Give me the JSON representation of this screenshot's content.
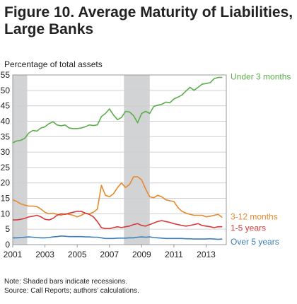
{
  "title_line1": "Figure 10. Average Maturity of Liabilities,",
  "title_line2": "Large Banks",
  "notes": {
    "note": "Note: Shaded bars indicate recessions.",
    "source": "Source: Call Reports; authors’ calculations."
  },
  "chart_data": {
    "type": "line",
    "ylabel": "Percentage of total assets",
    "xlim": [
      2001.0,
      2014.25
    ],
    "ylim": [
      0,
      55
    ],
    "y_ticks": [
      0,
      5,
      10,
      15,
      20,
      25,
      30,
      35,
      40,
      45,
      50,
      55
    ],
    "x_ticks": [
      2001,
      2003,
      2005,
      2007,
      2009,
      2011,
      2013
    ],
    "x_tick_labels": [
      "2001",
      "2003",
      "2005",
      "2007",
      "2009",
      "2011",
      "2013"
    ],
    "recessions": [
      [
        2001.0,
        2001.9
      ],
      [
        2007.9,
        2009.5
      ]
    ],
    "grid": true,
    "series": [
      {
        "name": "Under 3 months",
        "color": "#5cae4a",
        "x": [
          2001.0,
          2001.25,
          2001.5,
          2001.75,
          2002.0,
          2002.25,
          2002.5,
          2002.75,
          2003.0,
          2003.25,
          2003.5,
          2003.75,
          2004.0,
          2004.25,
          2004.5,
          2004.75,
          2005.0,
          2005.25,
          2005.5,
          2005.75,
          2006.0,
          2006.25,
          2006.5,
          2006.75,
          2007.0,
          2007.25,
          2007.5,
          2007.75,
          2008.0,
          2008.25,
          2008.5,
          2008.75,
          2009.0,
          2009.25,
          2009.5,
          2009.75,
          2010.0,
          2010.25,
          2010.5,
          2010.75,
          2011.0,
          2011.25,
          2011.5,
          2011.75,
          2012.0,
          2012.25,
          2012.5,
          2012.75,
          2013.0,
          2013.25,
          2013.5,
          2013.75,
          2014.0
        ],
        "y": [
          33.0,
          33.6,
          33.8,
          34.5,
          36.2,
          37.0,
          36.8,
          37.8,
          38.2,
          39.2,
          39.8,
          38.8,
          38.5,
          38.8,
          37.8,
          37.6,
          37.6,
          37.8,
          38.2,
          38.8,
          38.6,
          38.8,
          41.5,
          42.5,
          44.0,
          42.0,
          40.5,
          41.2,
          43.2,
          43.0,
          41.8,
          39.5,
          42.5,
          43.2,
          42.5,
          44.8,
          45.2,
          45.5,
          46.2,
          46.0,
          47.2,
          47.8,
          48.5,
          49.8,
          51.0,
          50.0,
          51.0,
          52.0,
          52.2,
          52.5,
          53.8,
          54.2,
          54.2
        ]
      },
      {
        "name": "3-12 months",
        "color": "#e8892e",
        "x": [
          2001.0,
          2001.25,
          2001.5,
          2001.75,
          2002.0,
          2002.25,
          2002.5,
          2002.75,
          2003.0,
          2003.25,
          2003.5,
          2003.75,
          2004.0,
          2004.25,
          2004.5,
          2004.75,
          2005.0,
          2005.25,
          2005.5,
          2005.75,
          2006.0,
          2006.25,
          2006.5,
          2006.75,
          2007.0,
          2007.25,
          2007.5,
          2007.75,
          2008.0,
          2008.25,
          2008.5,
          2008.75,
          2009.0,
          2009.25,
          2009.5,
          2009.75,
          2010.0,
          2010.25,
          2010.5,
          2010.75,
          2011.0,
          2011.25,
          2011.5,
          2011.75,
          2012.0,
          2012.25,
          2012.5,
          2012.75,
          2013.0,
          2013.25,
          2013.5,
          2013.75,
          2014.0
        ],
        "y": [
          14.5,
          14.0,
          13.2,
          12.8,
          12.5,
          12.5,
          12.3,
          11.5,
          10.5,
          10.0,
          10.2,
          9.8,
          9.5,
          10.0,
          9.8,
          9.5,
          9.0,
          9.5,
          10.2,
          10.0,
          10.5,
          11.5,
          19.2,
          16.0,
          15.5,
          16.5,
          18.5,
          20.0,
          18.5,
          19.5,
          22.0,
          22.0,
          21.0,
          18.0,
          15.5,
          15.2,
          16.0,
          15.5,
          14.5,
          14.2,
          14.0,
          12.0,
          10.8,
          10.2,
          9.8,
          9.5,
          9.5,
          9.5,
          9.0,
          9.2,
          9.5,
          9.8,
          8.8
        ]
      },
      {
        "name": "1-5 years",
        "color": "#d73b3b",
        "x": [
          2001.0,
          2001.25,
          2001.5,
          2001.75,
          2002.0,
          2002.25,
          2002.5,
          2002.75,
          2003.0,
          2003.25,
          2003.5,
          2003.75,
          2004.0,
          2004.25,
          2004.5,
          2004.75,
          2005.0,
          2005.25,
          2005.5,
          2005.75,
          2006.0,
          2006.25,
          2006.5,
          2006.75,
          2007.0,
          2007.25,
          2007.5,
          2007.75,
          2008.0,
          2008.25,
          2008.5,
          2008.75,
          2009.0,
          2009.25,
          2009.5,
          2009.75,
          2010.0,
          2010.25,
          2010.5,
          2010.75,
          2011.0,
          2011.25,
          2011.5,
          2011.75,
          2012.0,
          2012.25,
          2012.5,
          2012.75,
          2013.0,
          2013.25,
          2013.5,
          2013.75,
          2014.0
        ],
        "y": [
          8.0,
          8.0,
          8.2,
          8.5,
          9.0,
          9.2,
          9.5,
          9.0,
          8.2,
          8.0,
          8.5,
          9.5,
          10.0,
          9.8,
          10.2,
          10.5,
          10.8,
          10.8,
          10.2,
          9.8,
          9.0,
          7.5,
          5.5,
          5.2,
          5.2,
          5.5,
          5.8,
          5.5,
          5.8,
          6.0,
          6.5,
          6.8,
          6.2,
          6.0,
          6.5,
          7.0,
          7.5,
          7.8,
          7.5,
          7.2,
          6.8,
          6.5,
          6.2,
          6.0,
          6.2,
          6.5,
          6.8,
          6.2,
          6.0,
          5.8,
          5.5,
          5.8,
          5.8
        ]
      },
      {
        "name": "Over 5 years",
        "color": "#3d7fb8",
        "x": [
          2001.0,
          2001.25,
          2001.5,
          2001.75,
          2002.0,
          2002.25,
          2002.5,
          2002.75,
          2003.0,
          2003.25,
          2003.5,
          2003.75,
          2004.0,
          2004.25,
          2004.5,
          2004.75,
          2005.0,
          2005.25,
          2005.5,
          2005.75,
          2006.0,
          2006.25,
          2006.5,
          2006.75,
          2007.0,
          2007.25,
          2007.5,
          2007.75,
          2008.0,
          2008.25,
          2008.5,
          2008.75,
          2009.0,
          2009.25,
          2009.5,
          2009.75,
          2010.0,
          2010.25,
          2010.5,
          2010.75,
          2011.0,
          2011.25,
          2011.5,
          2011.75,
          2012.0,
          2012.25,
          2012.5,
          2012.75,
          2013.0,
          2013.25,
          2013.5,
          2013.75,
          2014.0
        ],
        "y": [
          2.2,
          2.2,
          2.3,
          2.4,
          2.5,
          2.4,
          2.3,
          2.2,
          2.2,
          2.3,
          2.5,
          2.6,
          2.8,
          2.7,
          2.6,
          2.6,
          2.6,
          2.6,
          2.5,
          2.5,
          2.4,
          2.4,
          2.2,
          2.0,
          2.0,
          2.0,
          2.1,
          2.1,
          2.1,
          2.2,
          2.2,
          2.4,
          2.5,
          2.4,
          2.5,
          2.3,
          2.2,
          2.1,
          2.0,
          2.0,
          2.0,
          2.0,
          2.0,
          1.9,
          1.9,
          1.8,
          1.8,
          1.8,
          1.8,
          1.9,
          1.8,
          1.7,
          1.8
        ]
      }
    ]
  }
}
